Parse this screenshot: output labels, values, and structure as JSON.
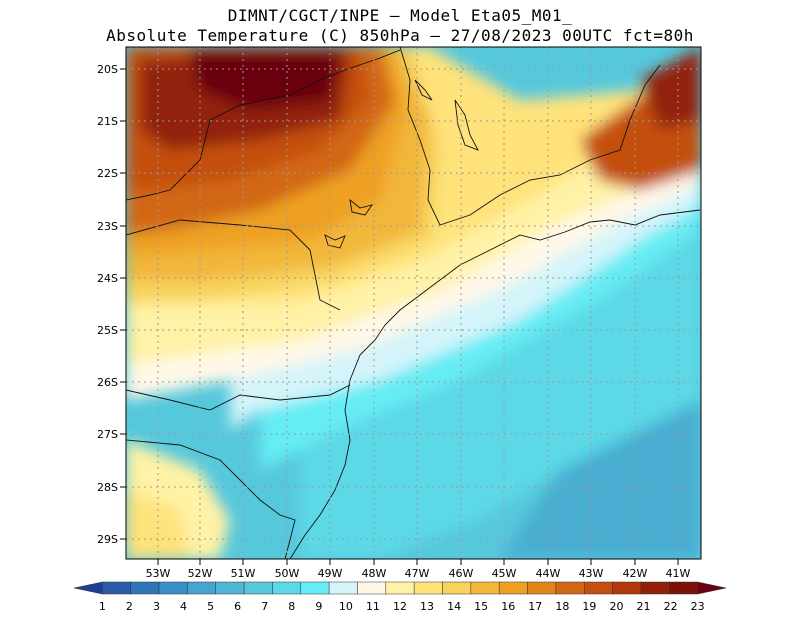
{
  "header": {
    "line1": "DIMNT/CGCT/INPE –  Model Eta05_M01_",
    "line2": "Absolute Temperature (C) 850hPa –  27/08/2023 00UTC fct=80h"
  },
  "axes": {
    "lat_labels": [
      "20S",
      "21S",
      "22S",
      "23S",
      "24S",
      "25S",
      "26S",
      "27S",
      "28S",
      "29S"
    ],
    "lon_labels": [
      "53W",
      "52W",
      "51W",
      "50W",
      "49W",
      "48W",
      "47W",
      "46W",
      "45W",
      "44W",
      "43W",
      "42W",
      "41W"
    ]
  },
  "colorbar": {
    "labels": [
      "1",
      "2",
      "3",
      "4",
      "5",
      "6",
      "7",
      "8",
      "9",
      "10",
      "11",
      "12",
      "13",
      "14",
      "15",
      "16",
      "17",
      "18",
      "19",
      "20",
      "21",
      "22",
      "23"
    ],
    "colors": [
      "#1f3f93",
      "#2a5aa8",
      "#2f74b8",
      "#3a8dc5",
      "#45a5cf",
      "#4fb8d6",
      "#56c8dc",
      "#5cd8e6",
      "#66ecf4",
      "#d4f4fa",
      "#fff8e8",
      "#fff2a6",
      "#ffe27a",
      "#f7d25c",
      "#f2b63a",
      "#eea020",
      "#e3841a",
      "#d26815",
      "#c4500f",
      "#b0380a",
      "#922008",
      "#7a1208",
      "#6a0010"
    ]
  },
  "colors": {
    "frame": "#000000",
    "grid": "#9a9a9a",
    "coast": "#111111"
  }
}
